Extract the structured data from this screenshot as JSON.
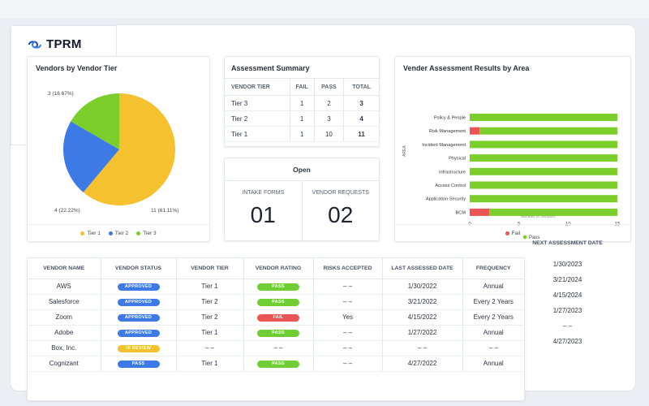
{
  "app": {
    "title": "TPRM"
  },
  "colors": {
    "tier1": "#f6c12e",
    "tier2": "#3d7ae6",
    "tier3": "#7ccf2a",
    "pass": "#7ccf2a",
    "fail": "#ea5454"
  },
  "vendor_tier_card": {
    "title": "Vendors by Vendor Tier",
    "label_tier3": "3 (16.67%)",
    "label_tier2": "4 (22.22%)",
    "label_tier1": "11 (61.11%)",
    "legend": [
      "Tier 1",
      "Tier 2",
      "Tier 3"
    ]
  },
  "summary_card": {
    "title": "Assessment Summary",
    "headers": [
      "VENDOR TIER",
      "FAIL",
      "PASS",
      "TOTAL"
    ],
    "rows": [
      [
        "Tier 3",
        "1",
        "2",
        "3"
      ],
      [
        "Tier 2",
        "1",
        "3",
        "4"
      ],
      [
        "Tier 1",
        "1",
        "10",
        "11"
      ]
    ]
  },
  "open_card": {
    "title": "Open",
    "intake_label": "INTAKE FORMS",
    "intake_value": "01",
    "requests_label": "VENDOR REQUESTS",
    "requests_value": "02"
  },
  "results_card": {
    "title": "Vender Assessment Results by Area",
    "y_axis_label": "AREA",
    "x_axis_label": "Number of Vendors",
    "legend_pass": "Pass",
    "legend_fail": "Fail"
  },
  "chart_data": {
    "type": "bar",
    "orientation": "horizontal",
    "stacked": true,
    "categories": [
      "Policy & People",
      "Risk Management",
      "Incident Management",
      "Physical",
      "Infrastructure",
      "Access Control",
      "Application Security",
      "BCM"
    ],
    "series": [
      {
        "name": "Fail",
        "values": [
          0,
          1,
          0,
          0,
          0,
          0,
          0,
          2
        ]
      },
      {
        "name": "Pass",
        "values": [
          15,
          14,
          15,
          15,
          15,
          15,
          15,
          13
        ]
      }
    ],
    "xticks": [
      "0",
      "5",
      "10",
      "15"
    ],
    "xlim": [
      0,
      15
    ],
    "xlabel": "Number of Vendors",
    "ylabel": "AREA"
  },
  "vendor_table": {
    "headers": [
      "VENDOR NAME",
      "VENDOR STATUS",
      "VENDOR TIER",
      "VENDOR RATING",
      "RISKS ACCEPTED",
      "LAST ASSESSED DATE",
      "FREQUENCY"
    ],
    "rows": [
      {
        "name": "AWS",
        "status": "APPROVED",
        "status_kind": "approved",
        "tier": "Tier 1",
        "rating": "PASS",
        "rating_kind": "pass",
        "risks": "– –",
        "last": "1/30/2022",
        "freq": "Annual"
      },
      {
        "name": "Salesforce",
        "status": "APPROVED",
        "status_kind": "approved",
        "tier": "Tier 2",
        "rating": "PASS",
        "rating_kind": "pass",
        "risks": "– –",
        "last": "3/21/2022",
        "freq": "Every 2 Years"
      },
      {
        "name": "Zoom",
        "status": "APPROVED",
        "status_kind": "approved",
        "tier": "Tier 2",
        "rating": "FAIL",
        "rating_kind": "fail",
        "risks": "Yes",
        "last": "4/15/2022",
        "freq": "Every 2 Years"
      },
      {
        "name": "Adobe",
        "status": "APPROVED",
        "status_kind": "approved",
        "tier": "Tier 1",
        "rating": "PASS",
        "rating_kind": "pass",
        "risks": "– –",
        "last": "1/27/2022",
        "freq": "Annual"
      },
      {
        "name": "Box, Inc.",
        "status": "IN REVIEW",
        "status_kind": "review",
        "tier": "– –",
        "rating": "– –",
        "rating_kind": "none",
        "risks": "– –",
        "last": "– –",
        "freq": "– –"
      },
      {
        "name": "Cognizant",
        "status": "PASS",
        "status_kind": "approved",
        "tier": "Tier 1",
        "rating": "PASS",
        "rating_kind": "pass",
        "risks": "– –",
        "last": "4/27/2022",
        "freq": "Annual"
      }
    ]
  },
  "next_assessment": {
    "header": "NEXT ASSESSMENT DATE",
    "dates": [
      "1/30/2023",
      "3/21/2024",
      "4/15/2024",
      "1/27/2023",
      "– –",
      "4/27/2023"
    ]
  }
}
